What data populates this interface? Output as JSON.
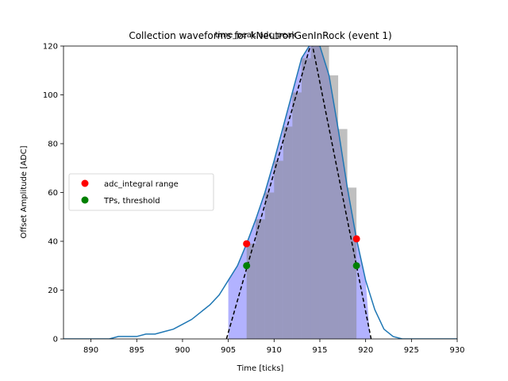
{
  "chart_data": {
    "type": "line",
    "title": "Collection waveforms for kNeutronGenInRock (event 1)",
    "annotation": "time_peak,adc_peak",
    "xlabel": "Time [ticks]",
    "ylabel": "Offset Amplitude [ADC]",
    "xlim": [
      887,
      930
    ],
    "ylim": [
      0,
      120
    ],
    "xticks": [
      890,
      895,
      900,
      905,
      910,
      915,
      920,
      925,
      930
    ],
    "yticks": [
      0,
      20,
      40,
      60,
      80,
      100,
      120
    ],
    "grid": false,
    "legend_position": "center-left",
    "legend": [
      {
        "label": "adc_integral range",
        "color": "#ff0000"
      },
      {
        "label": "TPs, threshold",
        "color": "#008000"
      }
    ],
    "colors": {
      "waveform": "#1f77b4",
      "bars": "#808080",
      "fill": "#0000ff",
      "triangle": "#000000",
      "integral_marker": "#ff0000",
      "threshold_marker": "#008000"
    },
    "waveform": {
      "x": [
        887,
        888,
        889,
        890,
        891,
        892,
        893,
        894,
        895,
        896,
        897,
        898,
        899,
        900,
        901,
        902,
        903,
        904,
        905,
        906,
        907,
        908,
        909,
        910,
        911,
        912,
        913,
        914,
        915,
        916,
        917,
        918,
        919,
        920,
        921,
        922,
        923,
        924,
        925,
        926,
        927,
        928,
        929,
        930
      ],
      "y": [
        0,
        0,
        0,
        0,
        0,
        0,
        1,
        1,
        1,
        2,
        2,
        3,
        4,
        6,
        8,
        11,
        14,
        18,
        24,
        30,
        39,
        49,
        60,
        73,
        87,
        101,
        115,
        121,
        120,
        108,
        86,
        62,
        41,
        24,
        12,
        4,
        1,
        0,
        0,
        0,
        0,
        0,
        0,
        0
      ]
    },
    "bars": {
      "x": [
        907,
        908,
        909,
        910,
        911,
        912,
        913,
        914,
        915,
        916,
        917,
        918
      ],
      "y": [
        39,
        49,
        60,
        73,
        87,
        101,
        115,
        121,
        120,
        108,
        86,
        62
      ]
    },
    "fill_region": {
      "x_start": 905,
      "x_end": 920.5
    },
    "triangle": {
      "x": [
        904.8,
        914.1,
        920.6
      ],
      "y": [
        0,
        122,
        0
      ]
    },
    "integral_range_points": {
      "x": [
        907,
        919
      ],
      "y": [
        39,
        41
      ]
    },
    "threshold_points": {
      "x": [
        907,
        919
      ],
      "y": [
        30,
        30
      ]
    }
  }
}
